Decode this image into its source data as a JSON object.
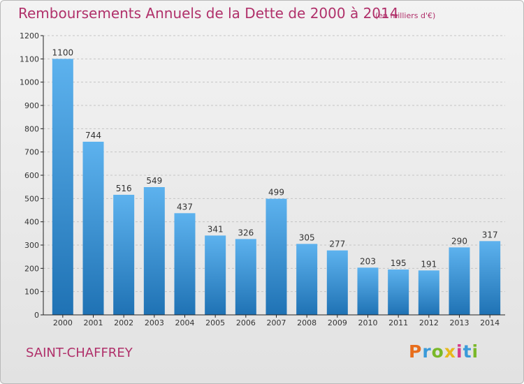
{
  "header": {
    "title": "Remboursements Annuels de la Dette de 2000 à 2014",
    "subtitle": "(en milliers d'€)"
  },
  "footer": {
    "city": "SAINT-CHAFFREY",
    "logo_text": "Proxiti",
    "logo_colors": [
      "#e86e1c",
      "#3a9ad9",
      "#7ab829",
      "#e8b81c",
      "#d63a8a",
      "#3a9ad9",
      "#7ab829"
    ]
  },
  "colors": {
    "title": "#b0306a",
    "bar_top": "#5db2ee",
    "bar_bottom": "#1f72b4",
    "grid": "#c4c4c4",
    "axis": "#222222"
  },
  "chart_data": {
    "type": "bar",
    "title": "Remboursements Annuels de la Dette de 2000 à 2014",
    "subtitle": "(en milliers d'€)",
    "xlabel": "",
    "ylabel": "",
    "categories": [
      "2000",
      "2001",
      "2002",
      "2003",
      "2004",
      "2005",
      "2006",
      "2007",
      "2008",
      "2009",
      "2010",
      "2011",
      "2012",
      "2013",
      "2014"
    ],
    "values": [
      1100,
      744,
      516,
      549,
      437,
      341,
      326,
      499,
      305,
      277,
      203,
      195,
      191,
      290,
      317
    ],
    "ylim": [
      0,
      1200
    ],
    "yticks": [
      0,
      100,
      200,
      300,
      400,
      500,
      600,
      700,
      800,
      900,
      1000,
      1100,
      1200
    ],
    "grid": true,
    "data_labels": true
  }
}
